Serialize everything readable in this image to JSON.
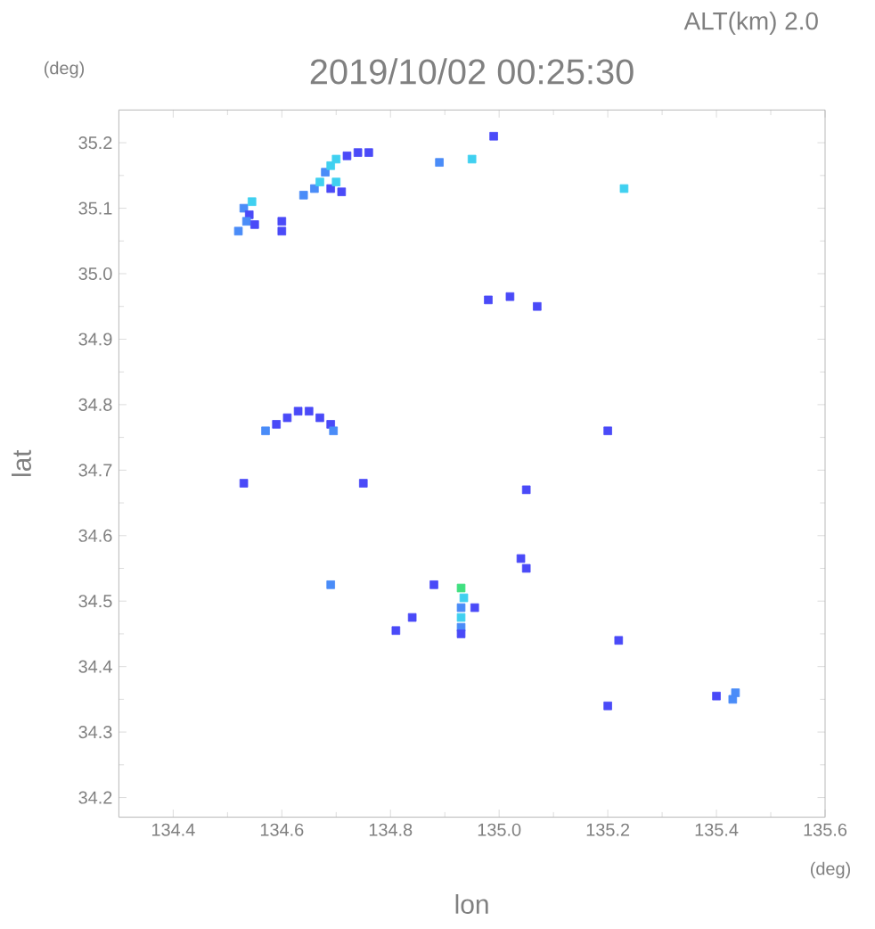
{
  "chart_data": {
    "type": "scatter",
    "title": "2019/10/02 00:25:30",
    "subtitle": "ALT(km) 2.0",
    "xlabel": "lon",
    "ylabel": "lat",
    "annotations": [
      "(deg)",
      "(deg)"
    ],
    "x": [
      134.53,
      134.54,
      134.535,
      134.55,
      134.52,
      134.545,
      134.64,
      134.66,
      134.67,
      134.68,
      134.69,
      134.7,
      134.72,
      134.74,
      134.76,
      134.69,
      134.71,
      134.7,
      134.6,
      134.6,
      134.89,
      134.95,
      134.99,
      134.98,
      135.02,
      135.07,
      135.23,
      134.57,
      134.59,
      134.61,
      134.63,
      134.65,
      134.67,
      134.69,
      134.695,
      134.53,
      134.75,
      135.05,
      134.69,
      134.88,
      134.84,
      134.81,
      134.93,
      134.935,
      134.93,
      134.93,
      134.93,
      134.93,
      134.955,
      135.04,
      135.05,
      135.2,
      135.22,
      135.2,
      135.4,
      135.43,
      135.435
    ],
    "values": [
      35.1,
      35.09,
      35.08,
      35.075,
      35.065,
      35.11,
      35.12,
      35.13,
      35.14,
      35.155,
      35.165,
      35.175,
      35.18,
      35.185,
      35.185,
      35.13,
      35.125,
      35.14,
      35.08,
      35.065,
      35.17,
      35.175,
      35.21,
      34.96,
      34.965,
      34.95,
      35.13,
      34.76,
      34.77,
      34.78,
      34.79,
      34.79,
      34.78,
      34.77,
      34.76,
      34.68,
      34.68,
      34.67,
      34.525,
      34.525,
      34.475,
      34.455,
      34.52,
      34.505,
      34.49,
      34.475,
      34.46,
      34.45,
      34.49,
      34.565,
      34.55,
      34.76,
      34.44,
      34.34,
      34.355,
      34.35,
      34.36
    ],
    "colors": [
      "#4a8cf8",
      "#4a4af8",
      "#4a8cf8",
      "#4a4af8",
      "#4a8cf8",
      "#40d0f0",
      "#4a8cf8",
      "#4a8cf8",
      "#40d0f0",
      "#4a8cf8",
      "#40d0f0",
      "#40d0f0",
      "#4a4af8",
      "#4a4af8",
      "#4a4af8",
      "#4a4af8",
      "#4a4af8",
      "#40d0f0",
      "#4a4af8",
      "#4a4af8",
      "#4a8cf8",
      "#40d0f0",
      "#4a4af8",
      "#4a4af8",
      "#4a4af8",
      "#4a4af8",
      "#40d0f0",
      "#4a8cf8",
      "#4a4af8",
      "#4a4af8",
      "#4a4af8",
      "#4a4af8",
      "#4a4af8",
      "#4a4af8",
      "#4a8cf8",
      "#4a4af8",
      "#4a4af8",
      "#4a4af8",
      "#4a8cf8",
      "#4a4af8",
      "#4a4af8",
      "#4a4af8",
      "#40e080",
      "#40d0f0",
      "#4a8cf8",
      "#40d0f0",
      "#4a8cf8",
      "#4a4af8",
      "#4a4af8",
      "#4a4af8",
      "#4a4af8",
      "#4a4af8",
      "#4a4af8",
      "#4a4af8",
      "#4a4af8",
      "#4a8cf8",
      "#4a8cf8"
    ],
    "marker": "square",
    "xlim": [
      134.3,
      135.6
    ],
    "ylim": [
      34.17,
      35.25
    ],
    "xticks": [
      134.4,
      134.6,
      134.8,
      {
        "value": 135,
        "label": "135.0"
      },
      135.2,
      135.4,
      135.6
    ],
    "yticks": [
      34.2,
      34.3,
      34.4,
      34.5,
      34.6,
      34.7,
      34.8,
      34.9,
      {
        "value": 35,
        "label": "35.0"
      },
      35.1,
      35.2
    ],
    "grid": false
  }
}
